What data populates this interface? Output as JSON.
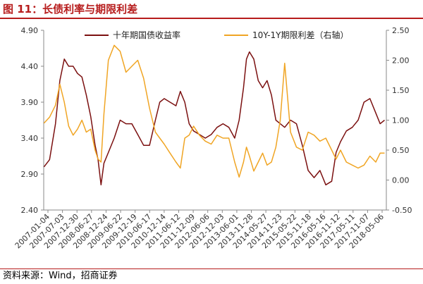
{
  "header": {
    "title": "图 11：长债利率与期限利差"
  },
  "footer": {
    "source": "资料来源：Wind，招商证券"
  },
  "colors": {
    "title": "#b71c1c",
    "yield": "#7b1010",
    "spread": "#f0a524",
    "axis": "#8a8a8a"
  },
  "chart_data": {
    "type": "line",
    "grid": false,
    "legend_position": "top",
    "x_tick_labels": [
      "2007-01-04",
      "2007-07-03",
      "2007-12-30",
      "2008-06-27",
      "2008-12-24",
      "2009-06-22",
      "2009-12-19",
      "2010-06-17",
      "2010-12-14",
      "2011-06-12",
      "2011-12-09",
      "2012-06-06",
      "2012-12-03",
      "2013-06-01",
      "2013-11-28",
      "2014-05-27",
      "2014-11-23",
      "2015-05-22",
      "2015-11-18",
      "2016-05-16",
      "2016-11-12",
      "2017-05-11",
      "2017-11-07",
      "2018-05-06"
    ],
    "y_left": {
      "ticks": [
        "4.90",
        "4.40",
        "3.90",
        "3.40",
        "2.90",
        "2.40"
      ],
      "min": 2.4,
      "max": 4.9
    },
    "y_right": {
      "ticks": [
        "2.50",
        "2.00",
        "1.50",
        "1.00",
        "0.50",
        "0.00",
        "-0.50"
      ],
      "min": -0.5,
      "max": 2.5
    },
    "series": [
      {
        "name": "十年期国债收益率",
        "axis": "left",
        "x": [
          2007.01,
          2007.2,
          2007.4,
          2007.55,
          2007.7,
          2007.85,
          2008.0,
          2008.15,
          2008.3,
          2008.45,
          2008.6,
          2008.75,
          2008.85,
          2008.95,
          2009.05,
          2009.2,
          2009.4,
          2009.6,
          2009.8,
          2010.0,
          2010.2,
          2010.4,
          2010.6,
          2010.8,
          2010.95,
          2011.1,
          2011.3,
          2011.5,
          2011.65,
          2011.8,
          2011.95,
          2012.1,
          2012.3,
          2012.5,
          2012.7,
          2012.9,
          2013.1,
          2013.3,
          2013.5,
          2013.65,
          2013.8,
          2013.9,
          2014.0,
          2014.15,
          2014.3,
          2014.45,
          2014.6,
          2014.75,
          2014.9,
          2015.05,
          2015.2,
          2015.4,
          2015.6,
          2015.8,
          2016.0,
          2016.2,
          2016.4,
          2016.6,
          2016.8,
          2016.95,
          2017.1,
          2017.3,
          2017.5,
          2017.7,
          2017.9,
          2018.1,
          2018.3,
          2018.45,
          2018.6
        ],
        "values": [
          3.0,
          3.1,
          3.6,
          4.2,
          4.5,
          4.4,
          4.4,
          4.3,
          4.25,
          4.0,
          3.7,
          3.3,
          3.1,
          2.75,
          3.05,
          3.2,
          3.4,
          3.65,
          3.6,
          3.6,
          3.45,
          3.3,
          3.3,
          3.65,
          3.9,
          3.95,
          3.9,
          3.85,
          4.05,
          3.9,
          3.6,
          3.5,
          3.45,
          3.4,
          3.45,
          3.55,
          3.6,
          3.55,
          3.4,
          3.65,
          4.1,
          4.5,
          4.6,
          4.5,
          4.2,
          4.1,
          4.2,
          4.0,
          3.65,
          3.6,
          3.55,
          3.65,
          3.6,
          3.3,
          2.95,
          2.85,
          2.95,
          2.75,
          2.8,
          3.2,
          3.35,
          3.5,
          3.55,
          3.65,
          3.9,
          3.95,
          3.75,
          3.6,
          3.65
        ]
      },
      {
        "name": "10Y-1Y期限利差（右轴）",
        "axis": "right",
        "x": [
          2007.01,
          2007.2,
          2007.4,
          2007.55,
          2007.7,
          2007.85,
          2008.0,
          2008.15,
          2008.3,
          2008.45,
          2008.6,
          2008.75,
          2008.85,
          2008.95,
          2009.05,
          2009.2,
          2009.4,
          2009.6,
          2009.8,
          2010.0,
          2010.2,
          2010.4,
          2010.6,
          2010.8,
          2010.95,
          2011.1,
          2011.3,
          2011.5,
          2011.65,
          2011.8,
          2011.95,
          2012.1,
          2012.3,
          2012.5,
          2012.7,
          2012.9,
          2013.1,
          2013.3,
          2013.5,
          2013.65,
          2013.8,
          2013.9,
          2014.0,
          2014.15,
          2014.3,
          2014.45,
          2014.6,
          2014.75,
          2014.9,
          2015.05,
          2015.2,
          2015.4,
          2015.6,
          2015.8,
          2016.0,
          2016.2,
          2016.4,
          2016.6,
          2016.8,
          2016.95,
          2017.1,
          2017.3,
          2017.5,
          2017.7,
          2017.9,
          2018.1,
          2018.3,
          2018.45,
          2018.6
        ],
        "values": [
          0.95,
          1.05,
          1.25,
          1.6,
          1.3,
          0.9,
          0.75,
          0.85,
          1.0,
          0.8,
          0.85,
          0.5,
          0.35,
          0.3,
          1.1,
          2.0,
          2.25,
          2.15,
          1.8,
          1.9,
          2.0,
          1.7,
          1.2,
          0.8,
          0.7,
          0.6,
          0.45,
          0.3,
          0.2,
          0.7,
          0.75,
          0.9,
          0.75,
          0.65,
          0.6,
          0.75,
          0.7,
          0.7,
          0.3,
          0.05,
          0.3,
          0.55,
          0.4,
          0.15,
          0.3,
          0.45,
          0.25,
          0.3,
          0.55,
          1.0,
          1.95,
          0.8,
          0.55,
          0.5,
          0.8,
          0.75,
          0.65,
          0.7,
          0.5,
          0.35,
          0.5,
          0.3,
          0.25,
          0.2,
          0.25,
          0.4,
          0.3,
          0.45,
          0.45
        ]
      }
    ]
  }
}
